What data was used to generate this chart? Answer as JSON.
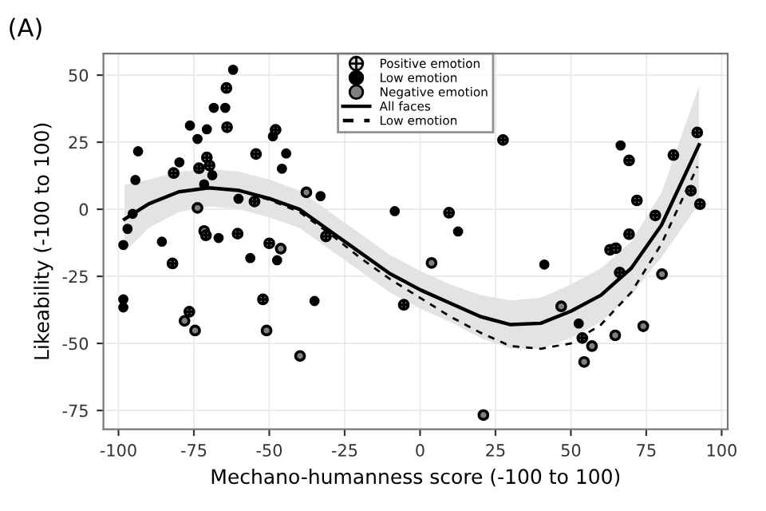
{
  "chart_data": {
    "type": "scatter",
    "title": "(A)",
    "xlabel": "Mechano-humanness score (-100 to 100)",
    "ylabel": "Likeability (-100 to 100)",
    "xlim": [
      -105,
      102
    ],
    "ylim": [
      -82,
      58
    ],
    "xticks": [
      -100,
      -75,
      -50,
      -25,
      0,
      25,
      50,
      75,
      100
    ],
    "yticks": [
      -75,
      -50,
      -25,
      0,
      25,
      50
    ],
    "grid": true,
    "legend": "top",
    "series": [
      {
        "name": "Positive emotion",
        "marker": "cross",
        "color": "#d9d9d9",
        "x": [
          -64.2,
          -64,
          -47.9,
          -54.4,
          -81.7,
          -70.7,
          -73.3,
          -69.8,
          -54.9,
          -71,
          -60.5,
          -82.1,
          -50,
          -31.2,
          -76.5,
          -52.1,
          -5.4,
          27.5,
          69.3,
          84,
          91.9,
          9.6,
          71.9,
          89.8,
          92.8,
          78,
          69.3,
          63,
          64.9,
          66.2,
          53.8
        ],
        "values": [
          45.2,
          30.6,
          29.6,
          20.6,
          13.5,
          19.3,
          15.3,
          16.3,
          2.9,
          -9.7,
          -9.1,
          -20.2,
          -12.7,
          -10.1,
          -38.2,
          -33.6,
          -35.6,
          25.8,
          18.2,
          20.2,
          28.6,
          -1.3,
          3.3,
          6.9,
          1.9,
          -2.3,
          -9.3,
          -15.1,
          -14.5,
          -23.6,
          -48
        ]
      },
      {
        "name": "Low emotion",
        "marker": "circle",
        "color": "#000000",
        "x": [
          -62,
          -68.4,
          -64.6,
          -76.3,
          -70.7,
          -73.8,
          -93.5,
          -79.8,
          -48.8,
          -44.4,
          -45.8,
          -94.4,
          -68.9,
          -71.6,
          -60.2,
          -33,
          -8.4,
          -95.3,
          -97,
          -98.4,
          -85.6,
          -66.8,
          -56.3,
          -47.4,
          -98.4,
          -98.4,
          -35,
          66.5,
          12.6,
          41.2,
          52.6
        ],
        "values": [
          52,
          37.8,
          37.8,
          31.2,
          29.8,
          26.2,
          21.6,
          17.5,
          27.2,
          20.8,
          15.1,
          10.9,
          12.7,
          9.3,
          3.9,
          4.9,
          -0.7,
          -1.7,
          -7.3,
          -13.3,
          -12.1,
          -10.7,
          -18.2,
          -19,
          -33.6,
          -36.6,
          -34.2,
          23.8,
          -8.3,
          -20.6,
          -42.6
        ]
      },
      {
        "name": "Negative emotion",
        "marker": "circle",
        "color": "#7f7f7f",
        "x": [
          -37.7,
          -73.8,
          -71.6,
          -46.2,
          -78.1,
          -74.6,
          -50.9,
          -39.8,
          3.8,
          80.2,
          46.8,
          57,
          54.4,
          64.7,
          74,
          21
        ],
        "values": [
          6.3,
          0.5,
          -8.1,
          -14.7,
          -41.6,
          -45.2,
          -45.2,
          -54.7,
          -20,
          -24.2,
          -36.2,
          -51,
          -56.9,
          -47,
          -43.6,
          -76.7
        ]
      },
      {
        "name": "All faces",
        "type": "line",
        "marker": "none",
        "line_style": "solid",
        "color": "#000000",
        "x": [
          -98,
          -90,
          -80,
          -70,
          -60,
          -50,
          -40,
          -30,
          -20,
          -10,
          0,
          10,
          20,
          30,
          40,
          50,
          60,
          70,
          80,
          92.5
        ],
        "values": [
          -3.7,
          2,
          6.5,
          8,
          7,
          4,
          0,
          -8,
          -16,
          -24,
          -30,
          -35,
          -40,
          -43,
          -42.5,
          -38,
          -32,
          -22,
          -6,
          24
        ],
        "lower": [
          -16,
          -7,
          -1,
          1,
          0,
          -3,
          -7,
          -15,
          -23,
          -31,
          -37,
          -42,
          -48,
          -52,
          -52,
          -48,
          -42,
          -32,
          -18,
          2
        ],
        "upper": [
          9,
          11,
          14,
          15,
          14,
          11,
          7,
          -1,
          -9,
          -17,
          -23,
          -28,
          -32,
          -34,
          -33,
          -28,
          -22,
          -12,
          6,
          46
        ]
      },
      {
        "name": "Low emotion",
        "type": "line",
        "marker": "none",
        "line_style": "dashed",
        "color": "#000000",
        "x": [
          -98,
          -90,
          -80,
          -70,
          -60,
          -50,
          -40,
          -30,
          -20,
          -10,
          0,
          10,
          20,
          30,
          40,
          50,
          60,
          70,
          80,
          92
        ],
        "values": [
          -3.7,
          2,
          6.5,
          8,
          7,
          3.5,
          -1,
          -9,
          -18,
          -26,
          -33,
          -40,
          -46,
          -51,
          -52,
          -50,
          -43,
          -31,
          -13,
          16
        ]
      }
    ]
  }
}
